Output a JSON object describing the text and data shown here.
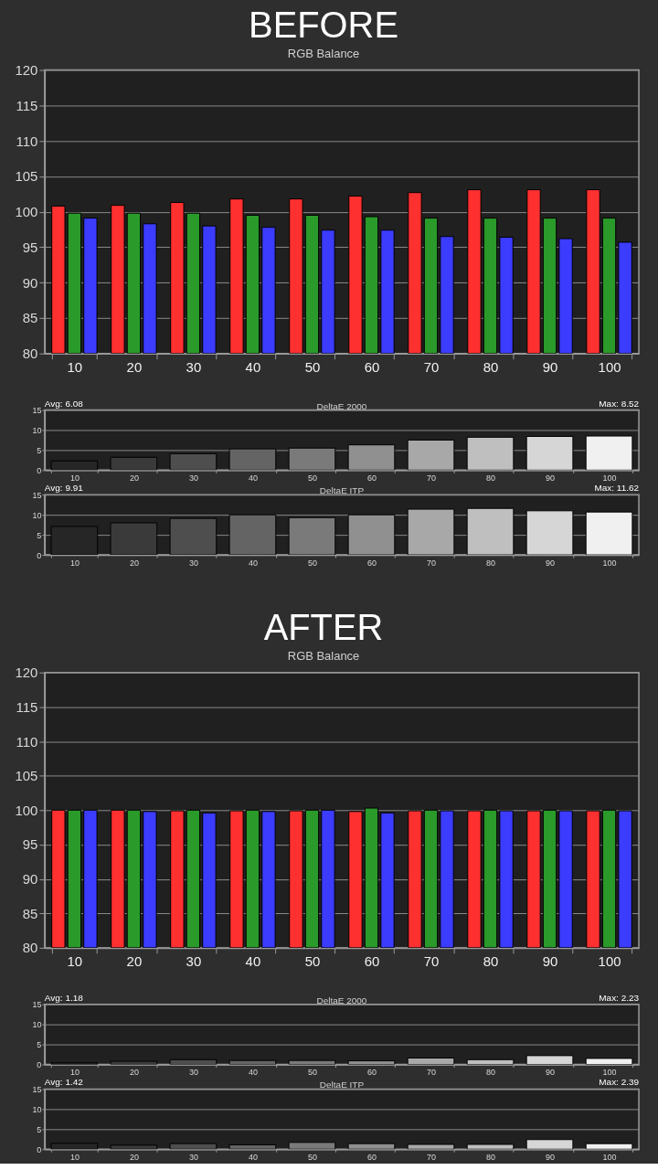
{
  "chart_data": [
    {
      "type": "bar",
      "title": "BEFORE",
      "subtitle": "RGB Balance",
      "categories": [
        "10",
        "20",
        "30",
        "40",
        "50",
        "60",
        "70",
        "80",
        "90",
        "100"
      ],
      "series": [
        {
          "color": "#ff3030",
          "values": [
            100.8,
            100.9,
            101.3,
            101.8,
            101.8,
            102.2,
            102.7,
            103.1,
            103.1,
            103.1
          ]
        },
        {
          "color": "#2a9a2a",
          "values": [
            99.8,
            99.8,
            99.8,
            99.5,
            99.5,
            99.3,
            99.1,
            99.1,
            99.1,
            99.1
          ]
        },
        {
          "color": "#3c3cff",
          "values": [
            99.1,
            98.3,
            98.0,
            97.8,
            97.4,
            97.4,
            96.5,
            96.4,
            96.2,
            95.7
          ]
        }
      ],
      "ylim": [
        80,
        120
      ],
      "yticks": [
        80,
        85,
        90,
        95,
        100,
        105,
        110,
        115,
        120
      ],
      "grid": "y"
    },
    {
      "type": "bar",
      "title": "DeltaE 2000",
      "annotations": [
        "Avg: 6.08",
        "Max: 8.52"
      ],
      "categories": [
        "10",
        "20",
        "30",
        "40",
        "50",
        "60",
        "70",
        "80",
        "90",
        "100"
      ],
      "values": [
        2.3,
        3.2,
        4.1,
        5.3,
        5.5,
        6.3,
        7.5,
        8.2,
        8.4,
        8.5
      ],
      "colors": [
        "#262626",
        "#3a3a3a",
        "#4e4e4e",
        "#646464",
        "#7a7a7a",
        "#909090",
        "#a8a8a8",
        "#bfbfbf",
        "#d6d6d6",
        "#f0f0f0"
      ],
      "ylim": [
        0,
        15
      ],
      "yticks": [
        0,
        5,
        10,
        15
      ],
      "grid": "y"
    },
    {
      "type": "bar",
      "title": "DeltaE ITP",
      "annotations": [
        "Avg: 9.91",
        "Max: 11.62"
      ],
      "categories": [
        "10",
        "20",
        "30",
        "40",
        "50",
        "60",
        "70",
        "80",
        "90",
        "100"
      ],
      "values": [
        7.1,
        8.0,
        9.1,
        10.0,
        9.3,
        10.0,
        11.4,
        11.6,
        11.0,
        10.7
      ],
      "colors": [
        "#262626",
        "#3a3a3a",
        "#4e4e4e",
        "#646464",
        "#7a7a7a",
        "#909090",
        "#a8a8a8",
        "#bfbfbf",
        "#d6d6d6",
        "#f0f0f0"
      ],
      "ylim": [
        0,
        15
      ],
      "yticks": [
        0,
        5,
        10,
        15
      ],
      "grid": "y"
    },
    {
      "type": "bar",
      "title": "AFTER",
      "subtitle": "RGB Balance",
      "categories": [
        "10",
        "20",
        "30",
        "40",
        "50",
        "60",
        "70",
        "80",
        "90",
        "100"
      ],
      "series": [
        {
          "color": "#ff3030",
          "values": [
            100.0,
            100.0,
            99.9,
            99.9,
            99.9,
            99.8,
            99.9,
            99.9,
            99.9,
            99.9
          ]
        },
        {
          "color": "#2a9a2a",
          "values": [
            100.0,
            100.0,
            100.0,
            100.0,
            100.0,
            100.3,
            100.0,
            100.0,
            100.0,
            100.0
          ]
        },
        {
          "color": "#3c3cff",
          "values": [
            100.0,
            99.8,
            99.6,
            99.8,
            100.0,
            99.6,
            99.9,
            99.9,
            99.9,
            99.9
          ]
        }
      ],
      "ylim": [
        80,
        120
      ],
      "yticks": [
        80,
        85,
        90,
        95,
        100,
        105,
        110,
        115,
        120
      ],
      "grid": "y"
    },
    {
      "type": "bar",
      "title": "DeltaE 2000",
      "annotations": [
        "Avg: 1.18",
        "Max: 2.23"
      ],
      "categories": [
        "10",
        "20",
        "30",
        "40",
        "50",
        "60",
        "70",
        "80",
        "90",
        "100"
      ],
      "values": [
        0.4,
        0.8,
        1.2,
        1.0,
        1.0,
        0.9,
        1.6,
        1.2,
        2.2,
        1.5
      ],
      "colors": [
        "#262626",
        "#3a3a3a",
        "#4e4e4e",
        "#646464",
        "#7a7a7a",
        "#909090",
        "#a8a8a8",
        "#bfbfbf",
        "#d6d6d6",
        "#f0f0f0"
      ],
      "ylim": [
        0,
        15
      ],
      "yticks": [
        0,
        5,
        10,
        15
      ],
      "grid": "y"
    },
    {
      "type": "bar",
      "title": "DeltaE ITP",
      "annotations": [
        "Avg: 1.42",
        "Max: 2.39"
      ],
      "categories": [
        "10",
        "20",
        "30",
        "40",
        "50",
        "60",
        "70",
        "80",
        "90",
        "100"
      ],
      "values": [
        1.5,
        1.0,
        1.4,
        1.1,
        1.7,
        1.4,
        1.2,
        1.2,
        2.4,
        1.4
      ],
      "colors": [
        "#262626",
        "#3a3a3a",
        "#4e4e4e",
        "#646464",
        "#7a7a7a",
        "#909090",
        "#a8a8a8",
        "#bfbfbf",
        "#d6d6d6",
        "#f0f0f0"
      ],
      "ylim": [
        0,
        15
      ],
      "yticks": [
        0,
        5,
        10,
        15
      ],
      "grid": "y"
    }
  ]
}
